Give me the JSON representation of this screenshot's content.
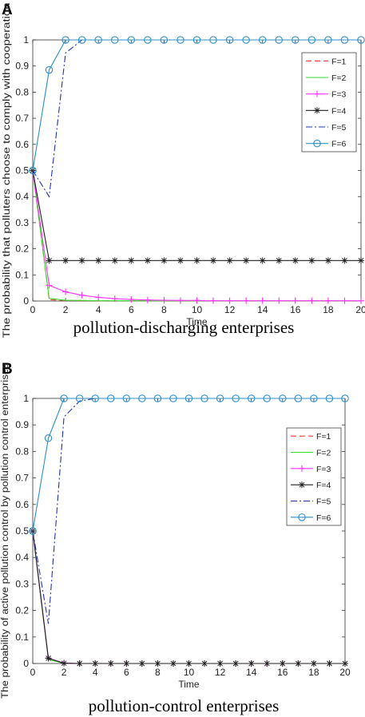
{
  "chart_data": [
    {
      "type": "line",
      "panel_label": "A",
      "xlabel": "Time",
      "ylabel": "The probability that polluters choose to comply with cooperation",
      "caption": "pollution-discharging enterprises",
      "xlim": [
        0,
        20
      ],
      "ylim": [
        0,
        1
      ],
      "xticks": [
        "0",
        "2",
        "4",
        "6",
        "8",
        "10",
        "12",
        "14",
        "16",
        "18",
        "20"
      ],
      "yticks": [
        "0",
        "0.1",
        "0.2",
        "0.3",
        "0.4",
        "0.5",
        "0.6",
        "0.7",
        "0.8",
        "0.9",
        "1"
      ],
      "legend_position": "top-right",
      "x": [
        0,
        1,
        2,
        3,
        4,
        5,
        6,
        7,
        8,
        9,
        10,
        11,
        12,
        13,
        14,
        15,
        16,
        17,
        18,
        19,
        20
      ],
      "series": [
        {
          "name": "F=1",
          "color": "#ff3333",
          "dash": "7,4",
          "marker": "none",
          "values": [
            0.5,
            0.005,
            0.002,
            0.001,
            0.001,
            0.001,
            0.001,
            0.001,
            0.001,
            0.001,
            0.001,
            0.001,
            0.001,
            0.001,
            0.001,
            0.001,
            0.001,
            0.001,
            0.001,
            0.001,
            0.001
          ]
        },
        {
          "name": "F=2",
          "color": "#33dd33",
          "dash": "",
          "marker": "none",
          "values": [
            0.5,
            0.01,
            0.003,
            0.002,
            0.001,
            0.001,
            0.001,
            0.001,
            0.001,
            0.001,
            0.001,
            0.001,
            0.001,
            0.001,
            0.001,
            0.001,
            0.001,
            0.001,
            0.001,
            0.001,
            0.001
          ]
        },
        {
          "name": "F=3",
          "color": "#ff33ff",
          "dash": "",
          "marker": "plus",
          "values": [
            0.5,
            0.06,
            0.035,
            0.022,
            0.014,
            0.009,
            0.006,
            0.004,
            0.003,
            0.002,
            0.002,
            0.001,
            0.001,
            0.001,
            0.001,
            0.001,
            0.001,
            0.001,
            0.001,
            0.001,
            0.001
          ]
        },
        {
          "name": "F=4",
          "color": "#222222",
          "dash": "",
          "marker": "star",
          "values": [
            0.5,
            0.155,
            0.155,
            0.155,
            0.155,
            0.155,
            0.155,
            0.155,
            0.155,
            0.155,
            0.155,
            0.155,
            0.155,
            0.155,
            0.155,
            0.155,
            0.155,
            0.155,
            0.155,
            0.155,
            0.155
          ]
        },
        {
          "name": "F=5",
          "color": "#2233bb",
          "dash": "8,3,2,3",
          "marker": "none",
          "values": [
            0.5,
            0.4,
            0.95,
            1,
            1,
            1,
            1,
            1,
            1,
            1,
            1,
            1,
            1,
            1,
            1,
            1,
            1,
            1,
            1,
            1,
            1
          ]
        },
        {
          "name": "F=6",
          "color": "#2b8fc7",
          "dash": "",
          "marker": "circle",
          "values": [
            0.5,
            0.885,
            1,
            1,
            1,
            1,
            1,
            1,
            1,
            1,
            1,
            1,
            1,
            1,
            1,
            1,
            1,
            1,
            1,
            1,
            1
          ]
        }
      ]
    },
    {
      "type": "line",
      "panel_label": "B",
      "xlabel": "Time",
      "ylabel": "The probability of active pollution control by pollution control enterprises",
      "caption": "pollution-control enterprises",
      "xlim": [
        0,
        20
      ],
      "ylim": [
        0,
        1
      ],
      "xticks": [
        "0",
        "2",
        "4",
        "6",
        "8",
        "10",
        "12",
        "14",
        "16",
        "18",
        "20"
      ],
      "yticks": [
        "0",
        "0.1",
        "0.2",
        "0.3",
        "0.4",
        "0.5",
        "0.6",
        "0.7",
        "0.8",
        "0.9",
        "1"
      ],
      "legend_position": "top-right",
      "x": [
        0,
        1,
        2,
        3,
        4,
        5,
        6,
        7,
        8,
        9,
        10,
        11,
        12,
        13,
        14,
        15,
        16,
        17,
        18,
        19,
        20
      ],
      "series": [
        {
          "name": "F=1",
          "color": "#ff3333",
          "dash": "7,4",
          "marker": "none",
          "values": [
            0.5,
            0.015,
            0.001,
            0,
            0,
            0,
            0,
            0,
            0,
            0,
            0,
            0,
            0,
            0,
            0,
            0,
            0,
            0,
            0,
            0,
            0
          ]
        },
        {
          "name": "F=2",
          "color": "#33dd33",
          "dash": "",
          "marker": "none",
          "values": [
            0.5,
            0.015,
            0.001,
            0,
            0,
            0,
            0,
            0,
            0,
            0,
            0,
            0,
            0,
            0,
            0,
            0,
            0,
            0,
            0,
            0,
            0
          ]
        },
        {
          "name": "F=3",
          "color": "#ff33ff",
          "dash": "",
          "marker": "plus",
          "values": [
            0.5,
            0.02,
            0.002,
            0,
            0,
            0,
            0,
            0,
            0,
            0,
            0,
            0,
            0,
            0,
            0,
            0,
            0,
            0,
            0,
            0,
            0
          ]
        },
        {
          "name": "F=4",
          "color": "#222222",
          "dash": "",
          "marker": "star",
          "values": [
            0.5,
            0.02,
            0.001,
            0,
            0,
            0,
            0,
            0,
            0,
            0,
            0,
            0,
            0,
            0,
            0,
            0,
            0,
            0,
            0,
            0,
            0
          ]
        },
        {
          "name": "F=5",
          "color": "#2233bb",
          "dash": "8,3,2,3",
          "marker": "none",
          "values": [
            0.5,
            0.15,
            0.93,
            0.99,
            1,
            1,
            1,
            1,
            1,
            1,
            1,
            1,
            1,
            1,
            1,
            1,
            1,
            1,
            1,
            1,
            1
          ]
        },
        {
          "name": "F=6",
          "color": "#2b8fc7",
          "dash": "",
          "marker": "circle",
          "values": [
            0.5,
            0.85,
            1,
            1,
            1,
            1,
            1,
            1,
            1,
            1,
            1,
            1,
            1,
            1,
            1,
            1,
            1,
            1,
            1,
            1,
            1
          ]
        }
      ]
    }
  ]
}
